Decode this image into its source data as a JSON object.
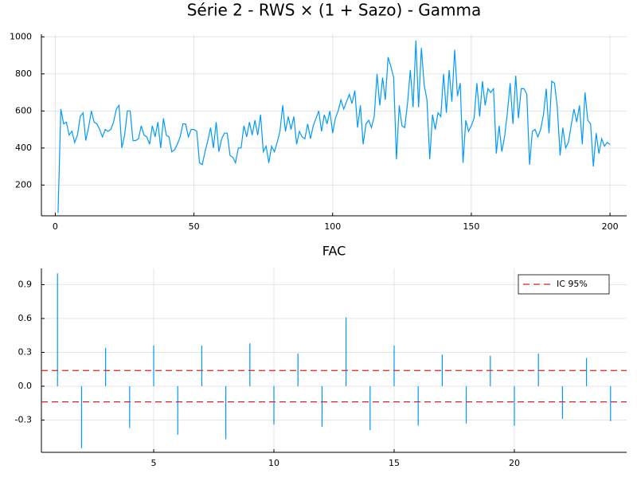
{
  "chart_data": [
    {
      "type": "line",
      "title": "Série 2 - RWS × (1 + Sazo) - Gamma",
      "grid": true,
      "xlim": [
        -5,
        206
      ],
      "ylim": [
        34,
        1014
      ],
      "xticks": [
        0,
        50,
        100,
        150,
        200
      ],
      "yticks": [
        200,
        400,
        600,
        800,
        1000
      ],
      "x": [
        1,
        2,
        3,
        4,
        5,
        6,
        7,
        8,
        9,
        10,
        11,
        12,
        13,
        14,
        15,
        16,
        17,
        18,
        19,
        20,
        21,
        22,
        23,
        24,
        25,
        26,
        27,
        28,
        29,
        30,
        31,
        32,
        33,
        34,
        35,
        36,
        37,
        38,
        39,
        40,
        41,
        42,
        43,
        44,
        45,
        46,
        47,
        48,
        49,
        50,
        51,
        52,
        53,
        54,
        55,
        56,
        57,
        58,
        59,
        60,
        61,
        62,
        63,
        64,
        65,
        66,
        67,
        68,
        69,
        70,
        71,
        72,
        73,
        74,
        75,
        76,
        77,
        78,
        79,
        80,
        81,
        82,
        83,
        84,
        85,
        86,
        87,
        88,
        89,
        90,
        91,
        92,
        93,
        94,
        95,
        96,
        97,
        98,
        99,
        100,
        101,
        102,
        103,
        104,
        105,
        106,
        107,
        108,
        109,
        110,
        111,
        112,
        113,
        114,
        115,
        116,
        117,
        118,
        119,
        120,
        121,
        122,
        123,
        124,
        125,
        126,
        127,
        128,
        129,
        130,
        131,
        132,
        133,
        134,
        135,
        136,
        137,
        138,
        139,
        140,
        141,
        142,
        143,
        144,
        145,
        146,
        147,
        148,
        149,
        150,
        151,
        152,
        153,
        154,
        155,
        156,
        157,
        158,
        159,
        160,
        161,
        162,
        163,
        164,
        165,
        166,
        167,
        168,
        169,
        170,
        171,
        172,
        173,
        174,
        175,
        176,
        177,
        178,
        179,
        180,
        181,
        182,
        183,
        184,
        185,
        186,
        187,
        188,
        189,
        190,
        191,
        192,
        193,
        194,
        195,
        196,
        197,
        198,
        199,
        200
      ],
      "series": [
        {
          "color": "#009af9",
          "values": [
            50,
            610,
            530,
            540,
            470,
            490,
            430,
            470,
            570,
            590,
            440,
            510,
            600,
            540,
            530,
            500,
            460,
            500,
            490,
            500,
            540,
            610,
            630,
            400,
            470,
            600,
            600,
            440,
            440,
            450,
            520,
            470,
            460,
            420,
            520,
            460,
            540,
            400,
            560,
            470,
            460,
            380,
            390,
            420,
            460,
            530,
            530,
            460,
            500,
            500,
            490,
            320,
            310,
            380,
            440,
            510,
            400,
            540,
            380,
            450,
            480,
            480,
            360,
            350,
            320,
            400,
            400,
            520,
            460,
            540,
            470,
            550,
            470,
            580,
            380,
            410,
            320,
            410,
            380,
            430,
            490,
            630,
            490,
            570,
            500,
            570,
            420,
            490,
            460,
            450,
            530,
            450,
            520,
            560,
            600,
            490,
            580,
            530,
            600,
            480,
            560,
            600,
            660,
            610,
            650,
            690,
            640,
            710,
            510,
            630,
            420,
            530,
            550,
            510,
            570,
            800,
            630,
            780,
            660,
            890,
            840,
            780,
            340,
            630,
            520,
            510,
            640,
            820,
            620,
            980,
            620,
            940,
            740,
            660,
            340,
            580,
            500,
            590,
            570,
            800,
            590,
            820,
            650,
            930,
            680,
            750,
            320,
            550,
            490,
            520,
            560,
            750,
            570,
            760,
            630,
            720,
            700,
            720,
            370,
            520,
            380,
            460,
            590,
            750,
            530,
            790,
            560,
            720,
            720,
            690,
            310,
            490,
            500,
            460,
            500,
            580,
            720,
            480,
            760,
            750,
            620,
            360,
            510,
            400,
            430,
            520,
            610,
            540,
            630,
            420,
            700,
            550,
            530,
            300,
            480,
            370,
            450,
            410,
            430,
            420
          ]
        }
      ]
    },
    {
      "type": "stem",
      "title": "FAC",
      "grid": true,
      "legend": "top-right",
      "xlim": [
        0.33,
        24.67
      ],
      "ylim": [
        -0.586,
        1.044
      ],
      "xticks": [
        5,
        10,
        15,
        20
      ],
      "yticks": [
        -0.3,
        {
          "value": 0,
          "label": "0.0"
        },
        0.3,
        0.6,
        0.9
      ],
      "x": [
        1,
        2,
        3,
        4,
        5,
        6,
        7,
        8,
        9,
        10,
        11,
        12,
        13,
        14,
        15,
        16,
        17,
        18,
        19,
        20,
        21,
        22,
        23,
        24
      ],
      "series": [
        {
          "color": "#009af9",
          "values": [
            1.0,
            -0.55,
            0.34,
            -0.37,
            0.36,
            -0.43,
            0.36,
            -0.47,
            0.38,
            -0.34,
            0.29,
            -0.36,
            0.61,
            -0.39,
            0.36,
            -0.35,
            0.28,
            -0.33,
            0.27,
            -0.35,
            0.29,
            -0.29,
            0.25,
            -0.31
          ]
        }
      ],
      "hlines": {
        "name": "IC 95%",
        "color": "#e0221f",
        "values": [
          0.139,
          -0.139
        ]
      }
    }
  ]
}
